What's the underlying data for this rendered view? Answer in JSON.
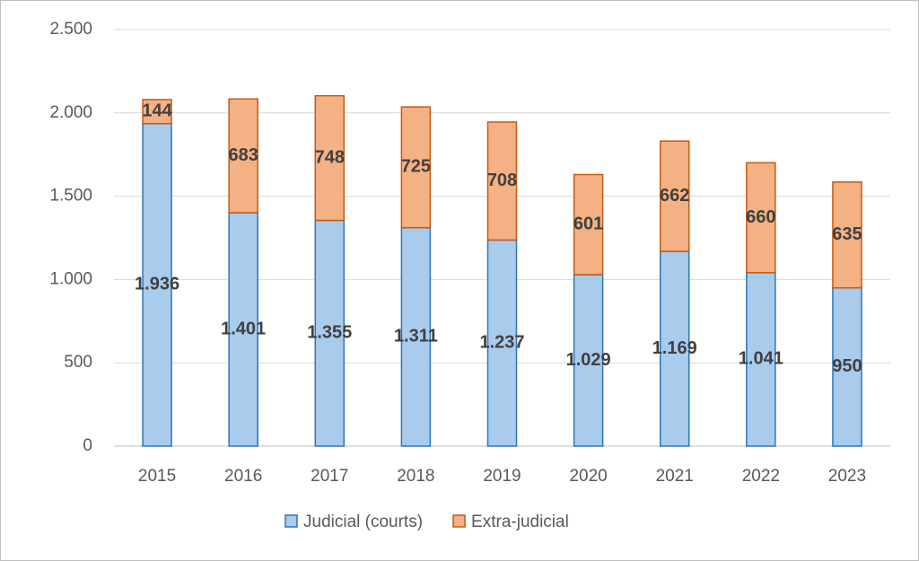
{
  "chart_data": {
    "type": "stacked-bar",
    "categories": [
      "2015",
      "2016",
      "2017",
      "2018",
      "2019",
      "2020",
      "2021",
      "2022",
      "2023"
    ],
    "series": [
      {
        "name": "Judicial (courts)",
        "color": "#a9cbec",
        "edge": "#2e75b6",
        "values": [
          1936,
          1401,
          1355,
          1311,
          1237,
          1029,
          1169,
          1041,
          950
        ],
        "value_labels": [
          "1.936",
          "1.401",
          "1.355",
          "1.311",
          "1.237",
          "1.029",
          "1.169",
          "1.041",
          "950"
        ]
      },
      {
        "name": "Extra-judicial",
        "color": "#f4b183",
        "edge": "#c55a11",
        "values": [
          144,
          683,
          748,
          725,
          708,
          601,
          662,
          660,
          635
        ]
      }
    ],
    "ylim": [
      0,
      2500
    ],
    "yticks": [
      0,
      500,
      {
        "value": 1000,
        "label": "1.000"
      },
      {
        "value": 1500,
        "label": "1.500"
      },
      {
        "value": 2000,
        "label": "2.000"
      },
      {
        "value": 2500,
        "label": "2.500"
      }
    ],
    "grid": true,
    "legend": "bottom"
  }
}
